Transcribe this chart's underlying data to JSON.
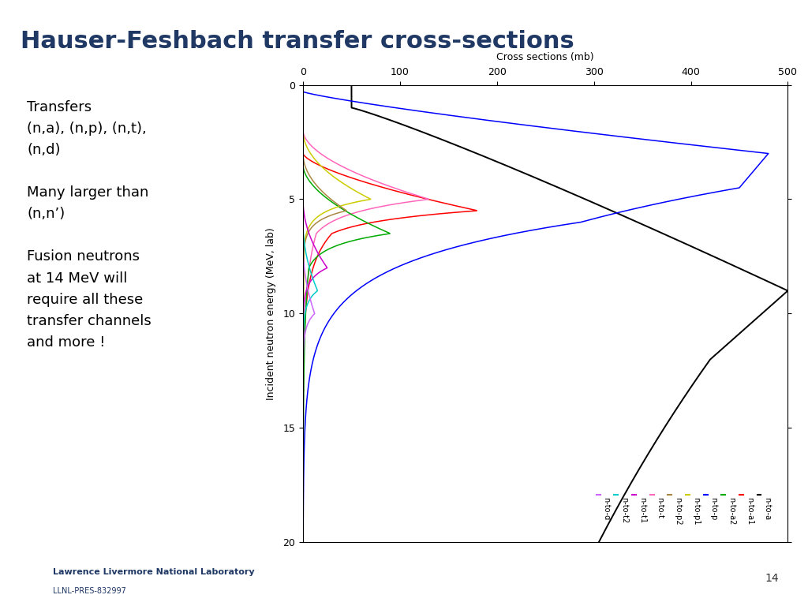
{
  "title": "Hauser-Feshbach transfer cross-sections",
  "title_color": "#1F3864",
  "xlabel": "Incident neutron energy (MeV, lab)",
  "ylabel": "Cross sections (mb)",
  "llnl_text": "LLNL-PRES-832997",
  "page_num": "14",
  "left_text": "Transfers\n(n,a), (n,p), (n,t),\n(n,d)\n\nMany larger than\n(n,n’)\n\nFusion neutrons\nat 14 MeV will\nrequire all these\ntransfer channels\nand more !",
  "legend_series": [
    {
      "label": "n-to-d",
      "color": "#CC66FF"
    },
    {
      "label": "n-to-t2",
      "color": "#00CCCC"
    },
    {
      "label": "n-to-t1",
      "color": "#CC00CC"
    },
    {
      "label": "n-to-t",
      "color": "#FF66CC"
    },
    {
      "label": "n-to-p2",
      "color": "#996633"
    },
    {
      "label": "n-to-p1",
      "color": "#CCCC00"
    },
    {
      "label": "n-to-p",
      "color": "#0000FF"
    },
    {
      "label": "n-to-a2",
      "color": "#00AA00"
    },
    {
      "label": "n-to-a1",
      "color": "#FF0000"
    },
    {
      "label": "n-to-a",
      "color": "#000000"
    }
  ]
}
